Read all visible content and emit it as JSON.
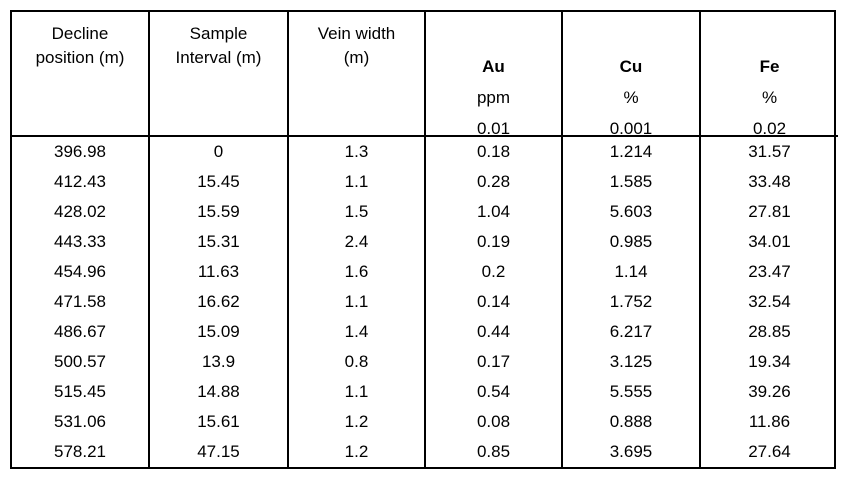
{
  "table": {
    "headers": [
      {
        "line1": "Decline",
        "line2": "position (m)"
      },
      {
        "line1": "Sample",
        "line2": "Interval (m)"
      },
      {
        "line1": "Vein width",
        "line2": "(m)"
      }
    ],
    "elements": [
      {
        "symbol": "Au",
        "unit": "ppm",
        "detection_limit": "0.01"
      },
      {
        "symbol": "Cu",
        "unit": "%",
        "detection_limit": "0.001"
      },
      {
        "symbol": "Fe",
        "unit": "%",
        "detection_limit": "0.02"
      }
    ],
    "rows": [
      [
        "396.98",
        "0",
        "1.3",
        "0.18",
        "1.214",
        "31.57"
      ],
      [
        "412.43",
        "15.45",
        "1.1",
        "0.28",
        "1.585",
        "33.48"
      ],
      [
        "428.02",
        "15.59",
        "1.5",
        "1.04",
        "5.603",
        "27.81"
      ],
      [
        "443.33",
        "15.31",
        "2.4",
        "0.19",
        "0.985",
        "34.01"
      ],
      [
        "454.96",
        "11.63",
        "1.6",
        "0.2",
        "1.14",
        "23.47"
      ],
      [
        "471.58",
        "16.62",
        "1.1",
        "0.14",
        "1.752",
        "32.54"
      ],
      [
        "486.67",
        "15.09",
        "1.4",
        "0.44",
        "6.217",
        "28.85"
      ],
      [
        "500.57",
        "13.9",
        "0.8",
        "0.17",
        "3.125",
        "19.34"
      ],
      [
        "515.45",
        "14.88",
        "1.1",
        "0.54",
        "5.555",
        "39.26"
      ],
      [
        "531.06",
        "15.61",
        "1.2",
        "0.08",
        "0.888",
        "11.86"
      ],
      [
        "578.21",
        "47.15",
        "1.2",
        "0.85",
        "3.695",
        "27.64"
      ]
    ]
  }
}
